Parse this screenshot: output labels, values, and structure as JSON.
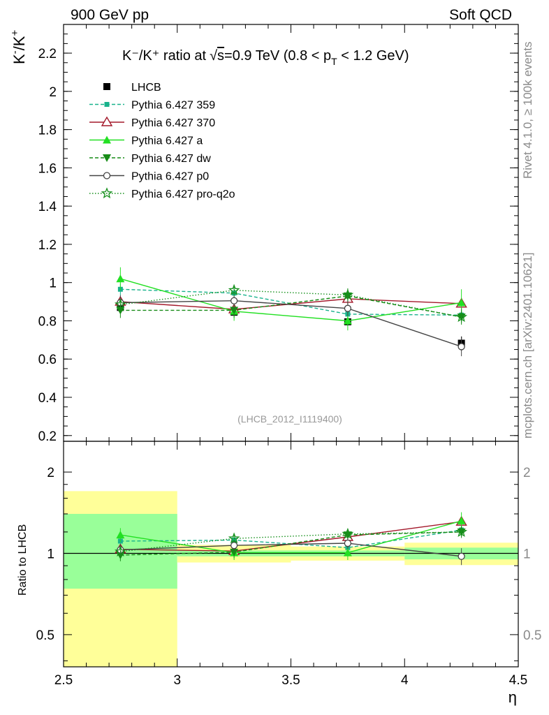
{
  "header": {
    "left": "900 GeV pp",
    "right": "Soft QCD"
  },
  "side_labels": {
    "rivet": "Rivet 4.1.0, ≥ 100k events",
    "mcplots": "mcplots.cern.ch [arXiv:2401.10621]"
  },
  "chart_data": [
    {
      "panel": "main",
      "type": "line",
      "title": "K⁻/K⁺ ratio at √s=0.9 TeV (0.8 < p_T < 1.2 GeV)",
      "title_parts": {
        "main": "K⁻/K⁺ ratio at",
        "sqrt": "√",
        "s": "s",
        "energy": "=0.9 TeV (0.8 < p",
        "sub": "T",
        "tail": " < 1.2 GeV)"
      },
      "ylabel_parts": {
        "k1": "K",
        "m": "-",
        "sl": "/K",
        "p": "+"
      },
      "ylabel": "K⁻/K⁺",
      "xlabel": "η",
      "xlim": [
        2.5,
        4.5
      ],
      "ylim": [
        0.17,
        2.35
      ],
      "yticks": [
        "0.2",
        "0.4",
        "0.6",
        "0.8",
        "1",
        "1.2",
        "1.4",
        "1.6",
        "1.8",
        "2",
        "2.2"
      ],
      "ytick_values": [
        0.2,
        0.4,
        0.6,
        0.8,
        1.0,
        1.2,
        1.4,
        1.6,
        1.8,
        2.0,
        2.2
      ],
      "watermark": "(LHCB_2012_I1119400)",
      "x": [
        2.75,
        3.25,
        3.75,
        4.25
      ],
      "data": {
        "name": "LHCB",
        "values": [
          0.87,
          0.845,
          0.795,
          0.683
        ],
        "errors": [
          0.02,
          0.02,
          0.02,
          0.035
        ],
        "bins": [
          [
            2.5,
            3.0
          ],
          [
            3.0,
            3.5
          ],
          [
            3.5,
            4.0
          ],
          [
            4.0,
            4.5
          ]
        ]
      },
      "series": [
        {
          "name": "Pythia 6.427 359",
          "color": "#19b28c",
          "marker": "square",
          "dash": "dashed",
          "values": [
            0.965,
            0.945,
            0.835,
            0.83
          ],
          "errors": [
            0.03,
            0.03,
            0.03,
            0.03
          ]
        },
        {
          "name": "Pythia 6.427 370",
          "color": "#a3182a",
          "marker": "triangle-open",
          "dash": "solid",
          "values": [
            0.9,
            0.86,
            0.915,
            0.89
          ],
          "errors": [
            0.03,
            0.03,
            0.03,
            0.03
          ]
        },
        {
          "name": "Pythia 6.427 a",
          "color": "#22e022",
          "marker": "triangle-filled",
          "dash": "solid",
          "values": [
            1.02,
            0.85,
            0.8,
            0.895
          ],
          "errors": [
            0.06,
            0.05,
            0.05,
            0.07
          ]
        },
        {
          "name": "Pythia 6.427 dw",
          "color": "#178c17",
          "marker": "triangle-down",
          "dash": "dashed",
          "values": [
            0.855,
            0.855,
            0.93,
            0.82
          ],
          "errors": [
            0.04,
            0.04,
            0.04,
            0.04
          ]
        },
        {
          "name": "Pythia 6.427 p0",
          "color": "#444444",
          "marker": "circle-open",
          "dash": "solid",
          "values": [
            0.895,
            0.905,
            0.865,
            0.665
          ],
          "errors": [
            0.04,
            0.04,
            0.04,
            0.05
          ]
        },
        {
          "name": "Pythia 6.427 pro-q2o",
          "color": "#16901c",
          "marker": "star",
          "dash": "dotted",
          "values": [
            0.885,
            0.96,
            0.935,
            0.82
          ],
          "errors": [
            0.03,
            0.03,
            0.03,
            0.03
          ]
        }
      ]
    },
    {
      "panel": "ratio",
      "type": "line",
      "ylabel": "Ratio to LHCB",
      "xlabel": "η",
      "scale": "log",
      "xlim": [
        2.5,
        4.5
      ],
      "ylim": [
        0.38,
        2.6
      ],
      "xticks": [
        "2.5",
        "3",
        "3.5",
        "4",
        "4.5"
      ],
      "xtick_values": [
        2.5,
        3.0,
        3.5,
        4.0,
        4.5
      ],
      "yticks": [
        "0.5",
        "1",
        "2"
      ],
      "ytick_values": [
        0.5,
        1.0,
        2.0
      ],
      "right_yticks": [
        "0.5",
        "1",
        "2"
      ],
      "bands": [
        {
          "bin": [
            2.5,
            3.0
          ],
          "yellow": [
            0.3,
            1.7
          ],
          "green": [
            0.74,
            1.4
          ]
        },
        {
          "bin": [
            3.0,
            3.5
          ],
          "yellow": [
            0.925,
            1.075
          ],
          "green": [
            0.975,
            1.025
          ]
        },
        {
          "bin": [
            3.5,
            4.0
          ],
          "yellow": [
            0.94,
            1.06
          ],
          "green": [
            0.975,
            1.025
          ]
        },
        {
          "bin": [
            4.0,
            4.5
          ],
          "yellow": [
            0.905,
            1.095
          ],
          "green": [
            0.95,
            1.05
          ]
        }
      ],
      "x": [
        2.75,
        3.25,
        3.75,
        4.25
      ],
      "series": [
        {
          "name": "Pythia 6.427 359",
          "values": [
            1.11,
            1.12,
            1.05,
            1.22
          ],
          "errors": [
            0.04,
            0.04,
            0.04,
            0.05
          ]
        },
        {
          "name": "Pythia 6.427 370",
          "values": [
            1.035,
            1.02,
            1.15,
            1.31
          ],
          "errors": [
            0.04,
            0.04,
            0.04,
            0.05
          ]
        },
        {
          "name": "Pythia 6.427 a",
          "values": [
            1.17,
            1.005,
            1.005,
            1.32
          ],
          "errors": [
            0.07,
            0.06,
            0.06,
            0.1
          ]
        },
        {
          "name": "Pythia 6.427 dw",
          "values": [
            0.985,
            1.01,
            1.17,
            1.2
          ],
          "errors": [
            0.05,
            0.05,
            0.05,
            0.06
          ]
        },
        {
          "name": "Pythia 6.427 p0",
          "values": [
            1.03,
            1.07,
            1.09,
            0.975
          ],
          "errors": [
            0.05,
            0.05,
            0.05,
            0.07
          ]
        },
        {
          "name": "Pythia 6.427 pro-q2o",
          "values": [
            1.015,
            1.135,
            1.18,
            1.2
          ],
          "errors": [
            0.04,
            0.04,
            0.04,
            0.05
          ]
        }
      ]
    }
  ]
}
